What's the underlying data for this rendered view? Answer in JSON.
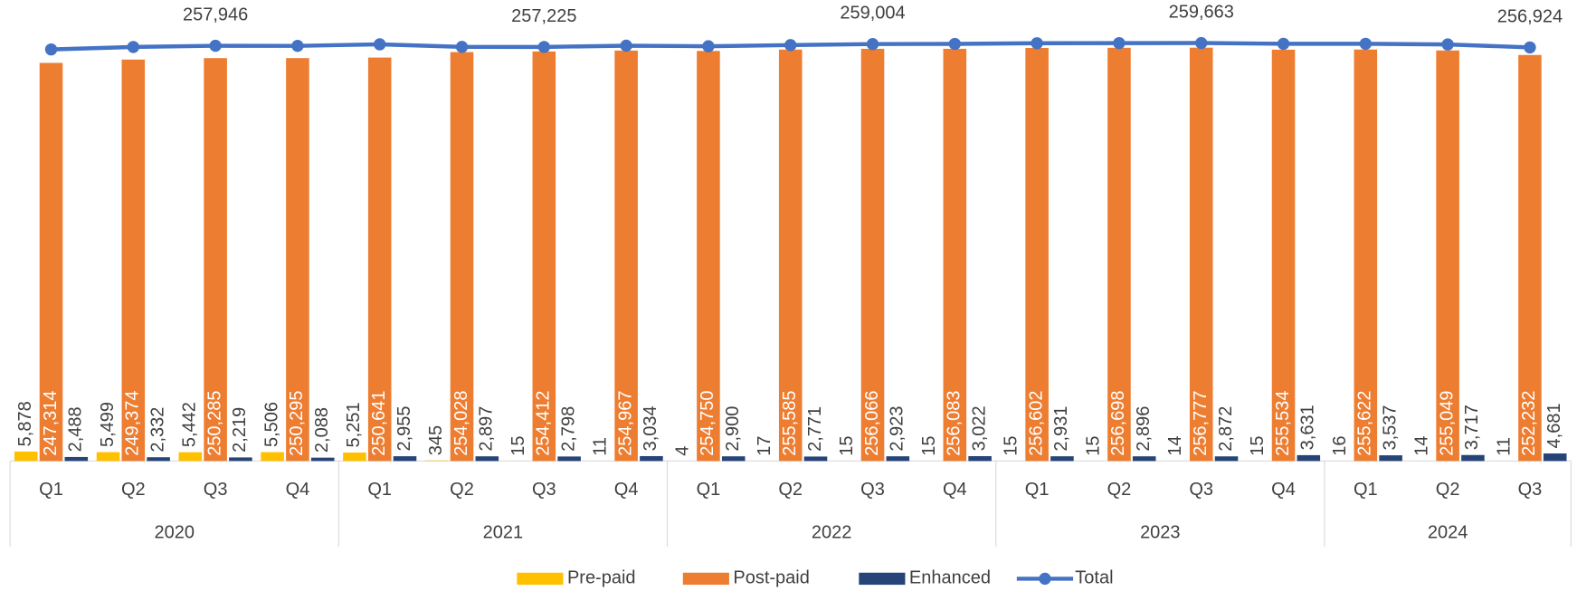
{
  "chart_data": {
    "type": "bar-line",
    "categories": [
      "Q1",
      "Q2",
      "Q3",
      "Q4",
      "Q1",
      "Q2",
      "Q3",
      "Q4",
      "Q1",
      "Q2",
      "Q3",
      "Q4",
      "Q1",
      "Q2",
      "Q3",
      "Q4",
      "Q1",
      "Q2",
      "Q3"
    ],
    "category_groups": [
      "2020",
      "2021",
      "2022",
      "2023",
      "2024"
    ],
    "ylim": [
      0,
      280000
    ],
    "legend": "bottom",
    "series": [
      {
        "name": "Pre-paid",
        "type": "bar",
        "color": "#FFC000",
        "values": [
          5878,
          5499,
          5442,
          5506,
          5251,
          345,
          15,
          11,
          4,
          17,
          15,
          15,
          15,
          15,
          14,
          15,
          16,
          14,
          11
        ],
        "value_labels": [
          "5,878",
          "5,499",
          "5,442",
          "5,506",
          "5,251",
          "345",
          "15",
          "11",
          "4",
          "17",
          "15",
          "15",
          "15",
          "15",
          "14",
          "15",
          "16",
          "14",
          "11"
        ]
      },
      {
        "name": "Post-paid",
        "type": "bar",
        "color": "#ED7D31",
        "values": [
          247314,
          249374,
          250285,
          250295,
          250641,
          254028,
          254412,
          254967,
          254750,
          255585,
          256066,
          256083,
          256602,
          256698,
          256777,
          255534,
          255622,
          255049,
          252232
        ],
        "value_labels": [
          "247,314",
          "249,374",
          "250,285",
          "250,295",
          "250,641",
          "254,028",
          "254,412",
          "254,967",
          "254,750",
          "255,585",
          "256,066",
          "256,083",
          "256,602",
          "256,698",
          "256,777",
          "255,534",
          "255,622",
          "255,049",
          "252,232"
        ]
      },
      {
        "name": "Enhanced",
        "type": "bar",
        "color": "#264478",
        "values": [
          2488,
          2332,
          2219,
          2088,
          2955,
          2897,
          2798,
          3034,
          2900,
          2771,
          2923,
          3022,
          2931,
          2896,
          2872,
          3631,
          3537,
          3717,
          4681
        ],
        "value_labels": [
          "2,488",
          "2,332",
          "2,219",
          "2,088",
          "2,955",
          "2,897",
          "2,798",
          "3,034",
          "2,900",
          "2,771",
          "2,923",
          "3,022",
          "2,931",
          "2,896",
          "2,872",
          "3,631",
          "3,537",
          "3,717",
          "4,681"
        ]
      },
      {
        "name": "Total",
        "type": "line",
        "color": "#4472C4",
        "values": [
          255680,
          257205,
          257946,
          257889,
          258847,
          257270,
          257225,
          258012,
          257654,
          258373,
          259004,
          259120,
          259548,
          259609,
          259663,
          259180,
          259175,
          258780,
          256924
        ],
        "value_labels": [
          null,
          null,
          "257,946",
          null,
          null,
          null,
          "257,225",
          null,
          null,
          null,
          "259,004",
          null,
          null,
          null,
          "259,663",
          null,
          null,
          null,
          "256,924"
        ]
      }
    ]
  }
}
